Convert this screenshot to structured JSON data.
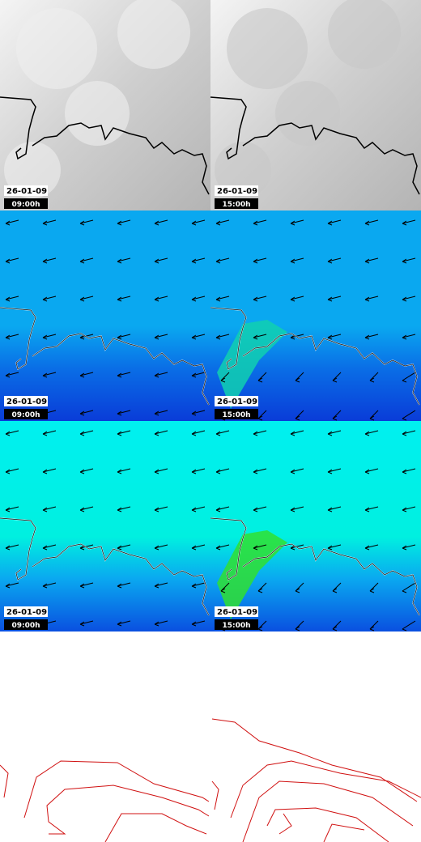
{
  "panels": [
    [
      {
        "date": "26-01-09",
        "time": "09:00h"
      },
      {
        "date": "26-01-09",
        "time": "15:00h"
      }
    ],
    [
      {
        "date": "26-01-09",
        "time": "09:00h"
      },
      {
        "date": "26-01-09",
        "time": "15:00h"
      }
    ],
    [
      {
        "date": "26-01-09",
        "time": "09:00h"
      },
      {
        "date": "26-01-09",
        "time": "15:00h"
      }
    ]
  ]
}
